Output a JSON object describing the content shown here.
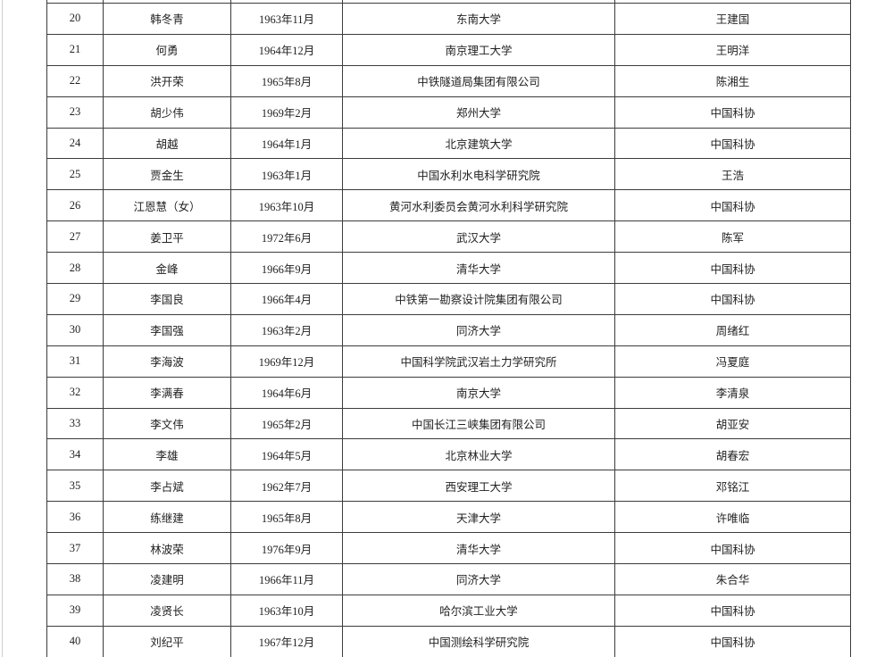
{
  "page": {
    "background_color": "#ffffff",
    "edge_line_color": "#cfcfcf"
  },
  "table": {
    "border_color": "#3c3c3c",
    "text_color": "#222222",
    "columns": [
      "index",
      "name",
      "birth_date",
      "institution",
      "recommender"
    ],
    "rows": [
      [
        "20",
        "韩冬青",
        "1963年11月",
        "东南大学",
        "王建国"
      ],
      [
        "21",
        "何勇",
        "1964年12月",
        "南京理工大学",
        "王明洋"
      ],
      [
        "22",
        "洪开荣",
        "1965年8月",
        "中铁隧道局集团有限公司",
        "陈湘生"
      ],
      [
        "23",
        "胡少伟",
        "1969年2月",
        "郑州大学",
        "中国科协"
      ],
      [
        "24",
        "胡越",
        "1964年1月",
        "北京建筑大学",
        "中国科协"
      ],
      [
        "25",
        "贾金生",
        "1963年1月",
        "中国水利水电科学研究院",
        "王浩"
      ],
      [
        "26",
        "江恩慧（女）",
        "1963年10月",
        "黄河水利委员会黄河水利科学研究院",
        "中国科协"
      ],
      [
        "27",
        "姜卫平",
        "1972年6月",
        "武汉大学",
        "陈军"
      ],
      [
        "28",
        "金峰",
        "1966年9月",
        "清华大学",
        "中国科协"
      ],
      [
        "29",
        "李国良",
        "1966年4月",
        "中铁第一勘察设计院集团有限公司",
        "中国科协"
      ],
      [
        "30",
        "李国强",
        "1963年2月",
        "同济大学",
        "周绪红"
      ],
      [
        "31",
        "李海波",
        "1969年12月",
        "中国科学院武汉岩土力学研究所",
        "冯夏庭"
      ],
      [
        "32",
        "李满春",
        "1964年6月",
        "南京大学",
        "李清泉"
      ],
      [
        "33",
        "李文伟",
        "1965年2月",
        "中国长江三峡集团有限公司",
        "胡亚安"
      ],
      [
        "34",
        "李雄",
        "1964年5月",
        "北京林业大学",
        "胡春宏"
      ],
      [
        "35",
        "李占斌",
        "1962年7月",
        "西安理工大学",
        "邓铭江"
      ],
      [
        "36",
        "练继建",
        "1965年8月",
        "天津大学",
        "许唯临"
      ],
      [
        "37",
        "林波荣",
        "1976年9月",
        "清华大学",
        "中国科协"
      ],
      [
        "38",
        "凌建明",
        "1966年11月",
        "同济大学",
        "朱合华"
      ],
      [
        "39",
        "凌贤长",
        "1963年10月",
        "哈尔滨工业大学",
        "中国科协"
      ],
      [
        "40",
        "刘纪平",
        "1967年12月",
        "中国测绘科学研究院",
        "中国科协"
      ]
    ]
  }
}
